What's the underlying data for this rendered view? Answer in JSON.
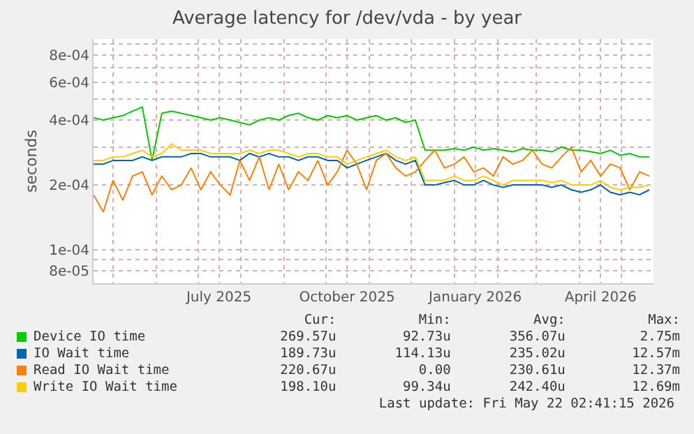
{
  "chart_data": {
    "type": "line",
    "title": "Average latency for /dev/vda - by year",
    "ylabel": "seconds",
    "x": [
      "2025-04-17",
      "2025-04-24",
      "2025-05-01",
      "2025-05-08",
      "2025-05-15",
      "2025-05-22",
      "2025-05-29",
      "2025-06-05",
      "2025-06-12",
      "2025-06-19",
      "2025-06-26",
      "2025-07-03",
      "2025-07-10",
      "2025-07-17",
      "2025-07-24",
      "2025-07-31",
      "2025-08-07",
      "2025-08-14",
      "2025-08-21",
      "2025-08-28",
      "2025-09-04",
      "2025-09-11",
      "2025-09-18",
      "2025-09-25",
      "2025-10-02",
      "2025-10-09",
      "2025-10-16",
      "2025-10-23",
      "2025-10-30",
      "2025-11-06",
      "2025-11-13",
      "2025-11-20",
      "2025-11-27",
      "2025-12-04",
      "2025-12-11",
      "2025-12-18",
      "2025-12-25",
      "2026-01-01",
      "2026-01-08",
      "2026-01-15",
      "2026-01-22",
      "2026-01-29",
      "2026-02-05",
      "2026-02-12",
      "2026-02-19",
      "2026-02-26",
      "2026-03-05",
      "2026-03-12",
      "2026-03-19",
      "2026-03-26",
      "2026-04-02",
      "2026-04-09",
      "2026-04-16",
      "2026-04-23",
      "2026-04-30",
      "2026-05-07",
      "2026-05-14",
      "2026-05-21"
    ],
    "series": [
      {
        "name": "Device IO time",
        "color": "#00cc00",
        "values": [
          0.00041,
          0.0004,
          0.00041,
          0.00042,
          0.00044,
          0.00046,
          0.00026,
          0.00043,
          0.00044,
          0.00043,
          0.00042,
          0.00041,
          0.0004,
          0.00041,
          0.0004,
          0.00039,
          0.00038,
          0.0004,
          0.00041,
          0.0004,
          0.00042,
          0.00043,
          0.00041,
          0.0004,
          0.00042,
          0.00041,
          0.00042,
          0.0004,
          0.00041,
          0.00042,
          0.0004,
          0.00041,
          0.00039,
          0.0004,
          0.00029,
          0.00029,
          0.00029,
          0.000295,
          0.00029,
          0.0003,
          0.00029,
          0.000295,
          0.00029,
          0.000285,
          0.000295,
          0.00029,
          0.00029,
          0.000285,
          0.0003,
          0.00029,
          0.00029,
          0.000285,
          0.00028,
          0.00029,
          0.000275,
          0.00028,
          0.00027,
          0.00027
        ]
      },
      {
        "name": "IO Wait time",
        "color": "#0066b3",
        "values": [
          0.00025,
          0.00025,
          0.00026,
          0.00026,
          0.00026,
          0.00027,
          0.00026,
          0.00027,
          0.00027,
          0.00027,
          0.00028,
          0.00028,
          0.00027,
          0.00027,
          0.00027,
          0.00026,
          0.00028,
          0.00027,
          0.00028,
          0.00027,
          0.00027,
          0.00026,
          0.00027,
          0.00027,
          0.00026,
          0.00026,
          0.00024,
          0.00025,
          0.00026,
          0.00027,
          0.00028,
          0.00026,
          0.00025,
          0.00026,
          0.0002,
          0.0002,
          0.000205,
          0.00021,
          0.0002,
          0.0002,
          0.00021,
          0.0002,
          0.000195,
          0.0002,
          0.0002,
          0.0002,
          0.0002,
          0.000195,
          0.0002,
          0.00019,
          0.000185,
          0.00019,
          0.0002,
          0.000185,
          0.00018,
          0.000185,
          0.00018,
          0.00019
        ]
      },
      {
        "name": "Read IO Wait time",
        "color": "#ff8000",
        "values": [
          0.00018,
          0.00015,
          0.00021,
          0.00017,
          0.00022,
          0.00023,
          0.00018,
          0.00022,
          0.00019,
          0.0002,
          0.00024,
          0.00019,
          0.00023,
          0.0002,
          0.00018,
          0.00026,
          0.00021,
          0.00027,
          0.00019,
          0.00025,
          0.00019,
          0.00023,
          0.00021,
          0.00026,
          0.0002,
          0.00023,
          0.00029,
          0.00025,
          0.00019,
          0.00026,
          0.00028,
          0.00024,
          0.00022,
          0.00023,
          0.00026,
          0.00029,
          0.00024,
          0.00025,
          0.00027,
          0.00023,
          0.00024,
          0.00022,
          0.00027,
          0.00025,
          0.00026,
          0.00029,
          0.00025,
          0.00024,
          0.00027,
          0.0003,
          0.00023,
          0.00026,
          0.00022,
          0.00025,
          0.00024,
          0.00019,
          0.00023,
          0.00022
        ]
      },
      {
        "name": "Write IO Wait time",
        "color": "#ffcc00",
        "values": [
          0.00026,
          0.00026,
          0.00027,
          0.00027,
          0.00028,
          0.00029,
          0.00027,
          0.00028,
          0.00031,
          0.00029,
          0.00029,
          0.00029,
          0.00028,
          0.00028,
          0.00028,
          0.00028,
          0.00029,
          0.00028,
          0.00029,
          0.00029,
          0.00028,
          0.00027,
          0.00028,
          0.00028,
          0.00027,
          0.00027,
          0.00025,
          0.00026,
          0.00027,
          0.00028,
          0.00029,
          0.00027,
          0.00026,
          0.00027,
          0.00021,
          0.00021,
          0.00021,
          0.00022,
          0.00021,
          0.00021,
          0.00022,
          0.00021,
          0.0002,
          0.00021,
          0.00021,
          0.00021,
          0.00021,
          0.000205,
          0.00021,
          0.0002,
          0.0002,
          0.0002,
          0.00021,
          0.000195,
          0.00019,
          0.000195,
          0.000195,
          0.0002
        ]
      }
    ],
    "xlim": [
      "2025-04-17",
      "2026-05-24"
    ],
    "xticks": [
      {
        "value": "2025-05-01",
        "label": null
      },
      {
        "value": "2025-06-01",
        "label": null
      },
      {
        "value": "2025-07-01",
        "label": null
      },
      {
        "value": "2025-07-16",
        "label": "July 2025"
      },
      {
        "value": "2025-08-01",
        "label": null
      },
      {
        "value": "2025-09-01",
        "label": null
      },
      {
        "value": "2025-10-01",
        "label": null
      },
      {
        "value": "2025-10-16",
        "label": "October 2025"
      },
      {
        "value": "2025-11-01",
        "label": null
      },
      {
        "value": "2025-12-01",
        "label": null
      },
      {
        "value": "2026-01-01",
        "label": null
      },
      {
        "value": "2026-01-16",
        "label": "January 2026"
      },
      {
        "value": "2026-02-01",
        "label": null
      },
      {
        "value": "2026-03-01",
        "label": null
      },
      {
        "value": "2026-04-01",
        "label": null
      },
      {
        "value": "2026-04-16",
        "label": "April 2026"
      },
      {
        "value": "2026-05-01",
        "label": null
      }
    ],
    "ylim": [
      7e-05,
      0.00095
    ],
    "yticks": [
      {
        "value": 8e-05,
        "label": "8e-05"
      },
      {
        "value": 9e-05,
        "label": null
      },
      {
        "value": 0.0001,
        "label": "1e-04"
      },
      {
        "value": 0.0002,
        "label": "2e-04"
      },
      {
        "value": 0.0003,
        "label": null
      },
      {
        "value": 0.0004,
        "label": "4e-04"
      },
      {
        "value": 0.0005,
        "label": null
      },
      {
        "value": 0.0006,
        "label": "6e-04"
      },
      {
        "value": 0.0007,
        "label": null
      },
      {
        "value": 0.0008,
        "label": "8e-04"
      },
      {
        "value": 0.0009,
        "label": null
      }
    ],
    "log": true,
    "grid": true,
    "legend": "bottom",
    "annotations": [
      "Cur:",
      "Min:",
      "Avg:",
      "Max:",
      "269.57u",
      "92.73u",
      "356.07u",
      "2.75m",
      "189.73u",
      "114.13u",
      "235.02u",
      "12.57m",
      "220.67u",
      "0.00",
      "230.61u",
      "12.37m",
      "198.10u",
      "99.34u",
      "242.40u",
      "12.69m",
      "Last update: Fri May 22 02:41:15 2026"
    ]
  }
}
